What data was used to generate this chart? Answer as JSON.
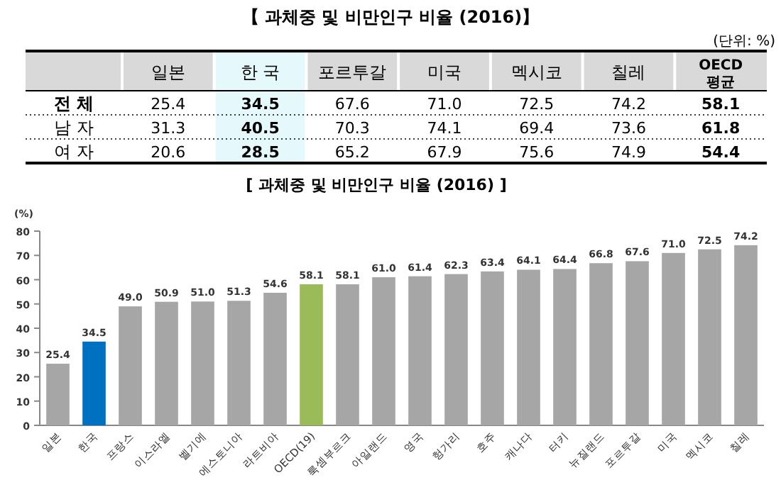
{
  "chart_data": [
    {
      "type": "heatmap",
      "title": "【 과체중 및 비만인구 비율 (2016)】",
      "annotations": [
        "(단위: %)"
      ],
      "categories": [
        "일본",
        "한 국",
        "포르투갈",
        "미국",
        "멕시코",
        "칠레",
        "OECD\n평균"
      ],
      "y_categories": [
        "전  체",
        "남  자",
        "여  자"
      ],
      "cells": [
        [
          25.4,
          34.5,
          67.6,
          71.0,
          72.5,
          74.2,
          58.1
        ],
        [
          31.3,
          40.5,
          70.3,
          74.1,
          69.4,
          73.6,
          61.8
        ],
        [
          20.6,
          28.5,
          65.2,
          67.9,
          75.6,
          74.9,
          54.4
        ]
      ],
      "cell_labels": [
        [
          "25.4",
          "34.5",
          "67.6",
          "71.0",
          "72.5",
          "74.2",
          "58.1"
        ],
        [
          "31.3",
          "40.5",
          "70.3",
          "74.1",
          "69.4",
          "73.6",
          "61.8"
        ],
        [
          "20.6",
          "28.5",
          "65.2",
          "67.9",
          "75.6",
          "74.9",
          "54.4"
        ]
      ]
    },
    {
      "type": "bar",
      "title": "[ 과체중 및 비만인구 비율 (2016) ]",
      "ylabel": "(%)",
      "categories": [
        "일본",
        "한국",
        "프랑스",
        "이스라엘",
        "벨기에",
        "에스토니아",
        "라트비아",
        "OECD(19)",
        "룩셈부르크",
        "아일랜드",
        "영국",
        "헝가리",
        "호주",
        "캐나다",
        "터키",
        "뉴질랜드",
        "포르투갈",
        "미국",
        "멕시코",
        "칠레"
      ],
      "values": [
        25.4,
        34.5,
        49.0,
        50.9,
        51.0,
        51.3,
        54.6,
        58.1,
        58.1,
        61.0,
        61.4,
        62.3,
        63.4,
        64.1,
        64.4,
        66.8,
        67.6,
        71.0,
        72.5,
        74.2
      ],
      "colors": [
        "#a6a6a6",
        "#0070c0",
        "#a6a6a6",
        "#a6a6a6",
        "#a6a6a6",
        "#a6a6a6",
        "#a6a6a6",
        "#9bbb59",
        "#a6a6a6",
        "#a6a6a6",
        "#a6a6a6",
        "#a6a6a6",
        "#a6a6a6",
        "#a6a6a6",
        "#a6a6a6",
        "#a6a6a6",
        "#a6a6a6",
        "#a6a6a6",
        "#a6a6a6",
        "#a6a6a6"
      ],
      "value_labels": [
        "25.4",
        "34.5",
        "49.0",
        "50.9",
        "51.0",
        "51.3",
        "54.6",
        "58.1",
        "58.1",
        "61.0",
        "61.4",
        "62.3",
        "63.4",
        "64.1",
        "64.4",
        "66.8",
        "67.6",
        "71.0",
        "72.5",
        "74.2"
      ],
      "ylim": [
        0,
        80
      ],
      "yticks": [
        0,
        10,
        20,
        30,
        40,
        50,
        60,
        70,
        80
      ]
    }
  ]
}
